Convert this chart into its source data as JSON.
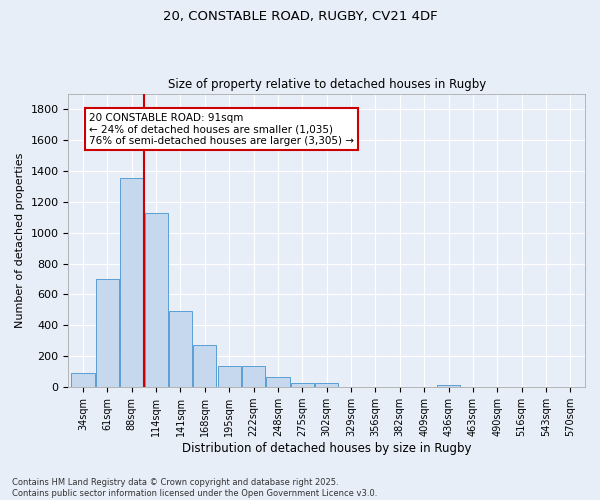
{
  "title": "20, CONSTABLE ROAD, RUGBY, CV21 4DF",
  "subtitle": "Size of property relative to detached houses in Rugby",
  "xlabel": "Distribution of detached houses by size in Rugby",
  "ylabel": "Number of detached properties",
  "bar_color": "#c5d8ee",
  "bar_edge_color": "#5a9fd4",
  "background_color": "#e8eef8",
  "grid_color": "#ffffff",
  "categories": [
    "34sqm",
    "61sqm",
    "88sqm",
    "114sqm",
    "141sqm",
    "168sqm",
    "195sqm",
    "222sqm",
    "248sqm",
    "275sqm",
    "302sqm",
    "329sqm",
    "356sqm",
    "382sqm",
    "409sqm",
    "436sqm",
    "463sqm",
    "490sqm",
    "516sqm",
    "543sqm",
    "570sqm"
  ],
  "values": [
    95,
    700,
    1355,
    1130,
    490,
    270,
    140,
    140,
    65,
    30,
    30,
    0,
    0,
    0,
    0,
    12,
    0,
    0,
    0,
    0,
    0
  ],
  "ylim": [
    0,
    1900
  ],
  "yticks": [
    0,
    200,
    400,
    600,
    800,
    1000,
    1200,
    1400,
    1600,
    1800
  ],
  "property_line_x": 2.5,
  "annotation_text": "20 CONSTABLE ROAD: 91sqm\n← 24% of detached houses are smaller (1,035)\n76% of semi-detached houses are larger (3,305) →",
  "annotation_box_color": "#ffffff",
  "annotation_box_edge": "#cc0000",
  "footer_line1": "Contains HM Land Registry data © Crown copyright and database right 2025.",
  "footer_line2": "Contains public sector information licensed under the Open Government Licence v3.0."
}
